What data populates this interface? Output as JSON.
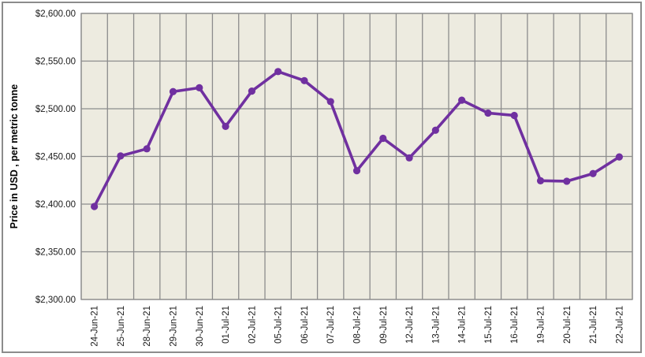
{
  "chart_data": {
    "type": "line",
    "title": "",
    "xlabel": "",
    "ylabel": "Price in USD , per metric tonne",
    "categories": [
      "24-Jun-21",
      "25-Jun-21",
      "28-Jun-21",
      "29-Jun-21",
      "30-Jun-21",
      "01-Jul-21",
      "02-Jul-21",
      "05-Jul-21",
      "06-Jul-21",
      "07-Jul-21",
      "08-Jul-21",
      "09-Jul-21",
      "12-Jul-21",
      "13-Jul-21",
      "14-Jul-21",
      "15-Jul-21",
      "16-Jul-21",
      "19-Jul-21",
      "20-Jul-21",
      "21-Jul-21",
      "22-Jul-21"
    ],
    "values": [
      2397.5,
      2450.5,
      2458,
      2518,
      2522,
      2481.5,
      2518.5,
      2539,
      2529.5,
      2507.5,
      2435,
      2469,
      2448.5,
      2477.5,
      2509,
      2495.5,
      2493,
      2424.5,
      2424,
      2432,
      2449.5
    ],
    "ylim": [
      2300,
      2600
    ],
    "y_tick_step": 50,
    "y_tick_labels": [
      "$2,300.00",
      "$2,350.00",
      "$2,400.00",
      "$2,450.00",
      "$2,500.00",
      "$2,550.00",
      "$2,600.00"
    ],
    "grid": true,
    "legend": "none",
    "colors": {
      "series_line": "#7030A0",
      "marker_fill": "#7030A0",
      "plot_background": "#EDEBE0",
      "gridline": "#8C8C8C",
      "plot_border": "#8C8C8C",
      "outer_frame": "#8C8C8C",
      "tick_text": "#1a1a1a"
    }
  }
}
